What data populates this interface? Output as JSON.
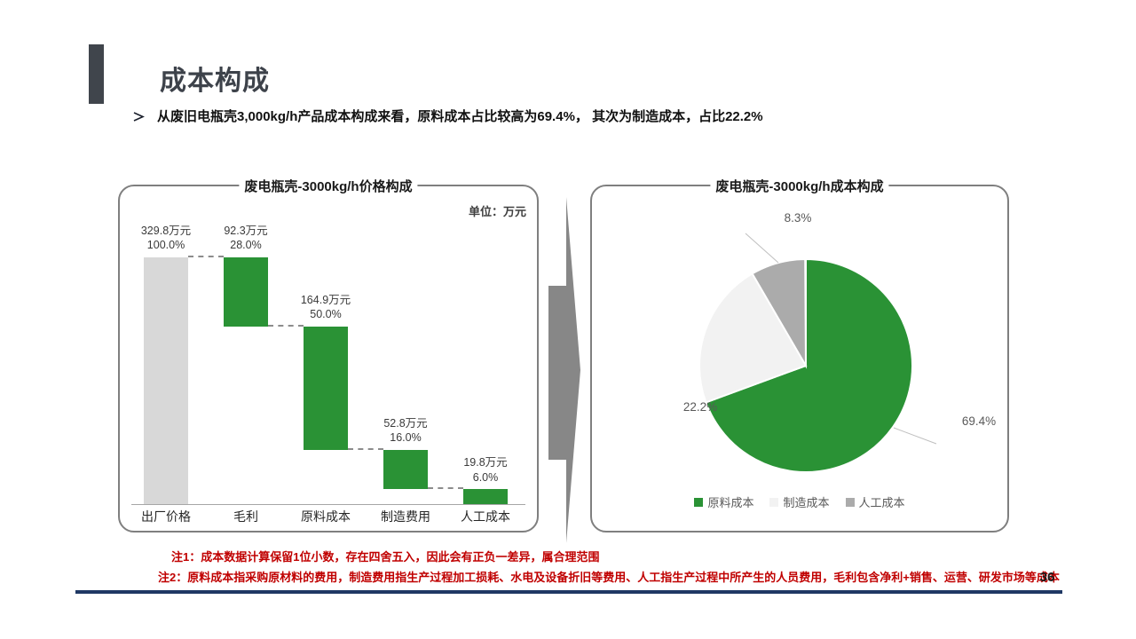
{
  "slide": {
    "title": "成本构成",
    "bullet": "从废旧电瓶壳3,000kg/h产品成本构成来看，原料成本占比较高为69.4%， 其次为制造成本，占比22.2%",
    "note1": "注1：成本数据计算保留1位小数，存在四舍五入，因此会有正负一差异，属合理范围",
    "note2": "注2：原料成本指采购原材料的费用，制造费用指生产过程加工损耗、水电及设备折旧等费用、人工指生产过程中所产生的人员费用，毛利包含净利+销售、运营、研发市场等成本",
    "page_number": "36",
    "colors": {
      "green": "#2a9235",
      "total_gray": "#d8d8d8",
      "light_gray": "#f2f2f2",
      "dark_gray": "#ababab",
      "arrow_gray": "#878787",
      "note_red": "#c00000",
      "navy": "#1f3864",
      "accent_dark": "#40454c"
    }
  },
  "chart_data": [
    {
      "type": "bar",
      "subtype": "waterfall",
      "title": "废电瓶壳-3000kg/h价格构成",
      "unit_label": "单位：万元",
      "categories": [
        "出厂价格",
        "毛利",
        "原料成本",
        "制造费用",
        "人工成本"
      ],
      "bars": [
        {
          "category": "出厂价格",
          "value": 329.8,
          "pct": 100.0,
          "value_label": "329.8万元",
          "pct_label": "100.0%",
          "role": "total",
          "color": "#d8d8d8"
        },
        {
          "category": "毛利",
          "value": 92.3,
          "pct": 28.0,
          "value_label": "92.3万元",
          "pct_label": "28.0%",
          "role": "segment",
          "color": "#2a9235"
        },
        {
          "category": "原料成本",
          "value": 164.9,
          "pct": 50.0,
          "value_label": "164.9万元",
          "pct_label": "50.0%",
          "role": "segment",
          "color": "#2a9235"
        },
        {
          "category": "制造费用",
          "value": 52.8,
          "pct": 16.0,
          "value_label": "52.8万元",
          "pct_label": "16.0%",
          "role": "segment",
          "color": "#2a9235"
        },
        {
          "category": "人工成本",
          "value": 19.8,
          "pct": 6.0,
          "value_label": "19.8万元",
          "pct_label": "6.0%",
          "role": "segment",
          "color": "#2a9235"
        }
      ],
      "ylim": [
        0,
        100
      ],
      "grid": false
    },
    {
      "type": "pie",
      "title": "废电瓶壳-3000kg/h成本构成",
      "slices": [
        {
          "name": "原料成本",
          "pct": 69.4,
          "pct_label": "69.4%",
          "color": "#2a9235"
        },
        {
          "name": "制造成本",
          "pct": 22.2,
          "pct_label": "22.2%",
          "color": "#f2f2f2"
        },
        {
          "name": "人工成本",
          "pct": 8.3,
          "pct_label": "8.3%",
          "color": "#ababab"
        }
      ],
      "legend_position": "bottom",
      "start_angle_deg": 0,
      "direction": "clockwise"
    }
  ]
}
